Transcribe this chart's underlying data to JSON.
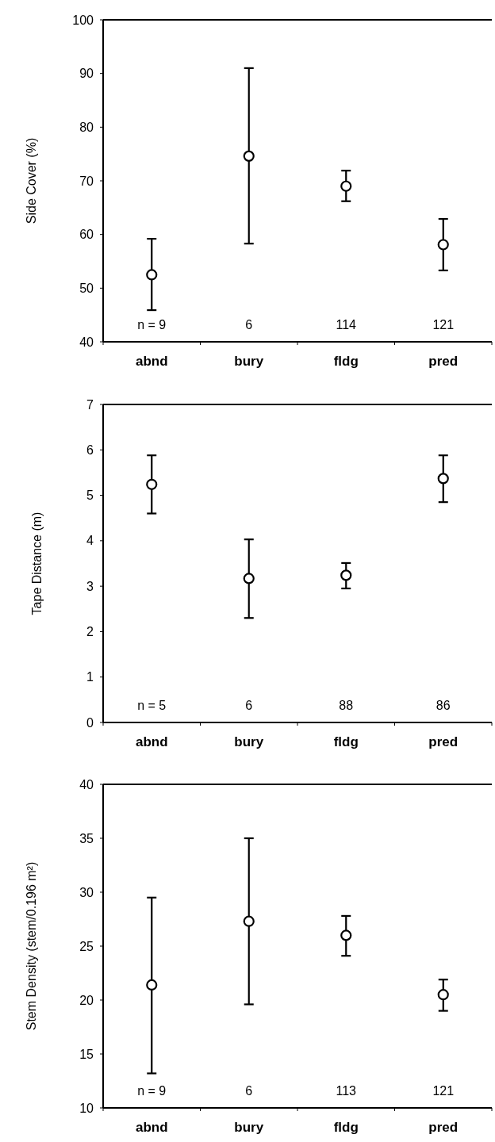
{
  "chart_data": [
    {
      "type": "scatter",
      "ylabel": "Side Cover (%)",
      "categories": [
        "abnd",
        "bury",
        "fldg",
        "pred"
      ],
      "marker": "circle",
      "color": "#000000",
      "ylim": [
        40,
        100
      ],
      "yticks": [
        40,
        50,
        60,
        70,
        80,
        90,
        100
      ],
      "values": [
        52.5,
        74.6,
        69.0,
        58.1
      ],
      "errors": [
        [
          45.9,
          59.2
        ],
        [
          58.3,
          91.0
        ],
        [
          66.2,
          71.9
        ],
        [
          53.3,
          62.9
        ]
      ],
      "annotations": [
        "n = 9",
        "6",
        "114",
        "121"
      ]
    },
    {
      "type": "scatter",
      "ylabel": "Tape Distance (m)",
      "categories": [
        "abnd",
        "bury",
        "fldg",
        "pred"
      ],
      "marker": "circle",
      "color": "#000000",
      "ylim": [
        0,
        7
      ],
      "yticks": [
        0,
        1,
        2,
        3,
        4,
        5,
        6,
        7
      ],
      "values": [
        5.24,
        3.17,
        3.24,
        5.37
      ],
      "errors": [
        [
          4.6,
          5.88
        ],
        [
          2.3,
          4.03
        ],
        [
          2.95,
          3.51
        ],
        [
          4.85,
          5.88
        ]
      ],
      "annotations": [
        "n = 5",
        "6",
        "88",
        "86"
      ]
    },
    {
      "type": "scatter",
      "ylabel": "Stem Density (stem/0.196 m²)",
      "categories": [
        "abnd",
        "bury",
        "fldg",
        "pred"
      ],
      "marker": "circle",
      "color": "#000000",
      "ylim": [
        10,
        40
      ],
      "yticks": [
        10,
        15,
        20,
        25,
        30,
        35,
        40
      ],
      "values": [
        21.4,
        27.3,
        26.0,
        20.5
      ],
      "errors": [
        [
          13.2,
          29.5
        ],
        [
          19.6,
          35.0
        ],
        [
          24.1,
          27.8
        ],
        [
          19.0,
          21.9
        ]
      ],
      "annotations": [
        "n = 9",
        "6",
        "113",
        "121"
      ]
    }
  ]
}
